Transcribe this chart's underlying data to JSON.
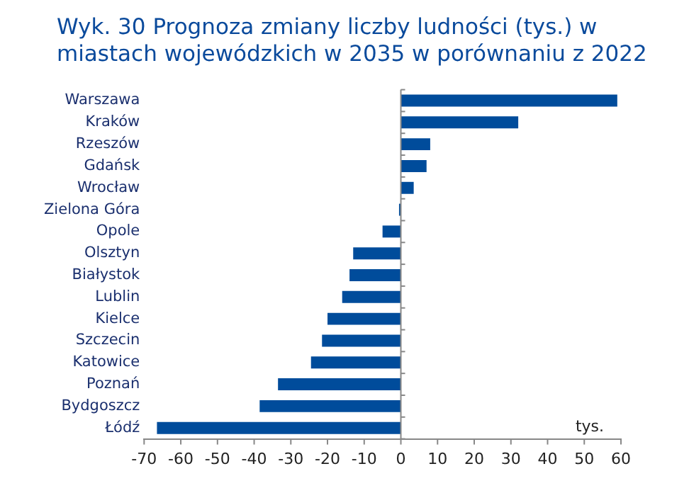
{
  "chart_data": {
    "type": "bar",
    "orientation": "horizontal",
    "title": "Wyk. 30 Prognoza zmiany liczby ludności (tys.) w miastach wojewódzkich w 2035 w porównaniu z 2022",
    "categories": [
      "Warszawa",
      "Kraków",
      "Rzeszów",
      "Gdańsk",
      "Wrocław",
      "Zielona Góra",
      "Opole",
      "Olsztyn",
      "Białystok",
      "Lublin",
      "Kielce",
      "Szczecin",
      "Katowice",
      "Poznań",
      "Bydgoszcz",
      "Łódź"
    ],
    "values": [
      59,
      32,
      8,
      7,
      3.5,
      -0.5,
      -5,
      -13,
      -14,
      -16,
      -20,
      -21.5,
      -24.5,
      -33.5,
      -38.5,
      -66.5
    ],
    "color": "#004c9b",
    "xlim": [
      -70,
      60
    ],
    "xticks": [
      -70,
      -60,
      -50,
      -40,
      -30,
      -20,
      -10,
      0,
      10,
      20,
      30,
      40,
      50,
      60
    ],
    "grid": false,
    "legend": false,
    "ref_lines": [
      {
        "axis": "x",
        "value": 0,
        "color": "#888888"
      }
    ],
    "annotations": [
      "tys."
    ]
  }
}
